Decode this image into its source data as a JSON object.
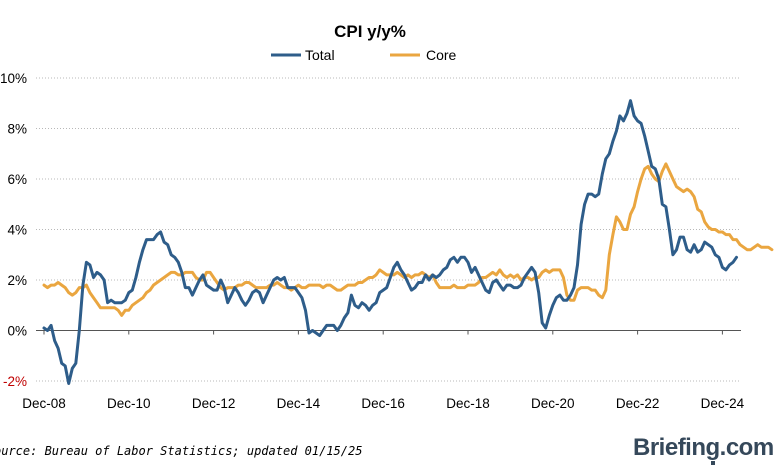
{
  "chart_data": {
    "type": "line",
    "title": "CPI y/y%",
    "xlabel": "",
    "ylabel": "",
    "ylim": [
      -2,
      10
    ],
    "x_ticks": [
      "Dec-08",
      "Dec-10",
      "Dec-12",
      "Dec-14",
      "Dec-16",
      "Dec-18",
      "Dec-20",
      "Dec-22",
      "Dec-24"
    ],
    "y_ticks": [
      "-2%",
      "0%",
      "2%",
      "4%",
      "6%",
      "8%",
      "10%"
    ],
    "y_tick_values": [
      -2,
      0,
      2,
      4,
      6,
      8,
      10
    ],
    "grid": "horizontal dotted",
    "legend_position": "top-center",
    "x_start": "2008-12",
    "x_end": "2024-12",
    "series": [
      {
        "name": "Total",
        "color": "#2e5d8a",
        "values": [
          0.1,
          0.0,
          0.2,
          -0.4,
          -0.7,
          -1.3,
          -1.4,
          -2.1,
          -1.5,
          -1.3,
          0.0,
          1.8,
          2.7,
          2.6,
          2.1,
          2.3,
          2.2,
          2.0,
          1.1,
          1.2,
          1.1,
          1.1,
          1.1,
          1.2,
          1.5,
          1.6,
          2.1,
          2.7,
          3.2,
          3.6,
          3.6,
          3.6,
          3.8,
          3.9,
          3.5,
          3.4,
          3.0,
          2.9,
          2.7,
          2.3,
          1.7,
          1.7,
          1.4,
          1.7,
          2.0,
          2.2,
          1.8,
          1.7,
          1.6,
          1.6,
          2.0,
          1.7,
          1.1,
          1.4,
          1.7,
          1.5,
          1.2,
          1.0,
          1.2,
          1.5,
          1.6,
          1.5,
          1.1,
          1.4,
          1.7,
          2.0,
          2.1,
          2.0,
          2.1,
          1.7,
          1.7,
          1.7,
          1.5,
          1.3,
          0.8,
          -0.1,
          0.0,
          -0.1,
          -0.2,
          0.0,
          0.2,
          0.2,
          0.2,
          0.0,
          0.2,
          0.5,
          0.7,
          1.4,
          1.0,
          0.9,
          1.1,
          1.0,
          0.8,
          1.0,
          1.1,
          1.5,
          1.6,
          1.7,
          2.1,
          2.5,
          2.7,
          2.4,
          2.2,
          1.9,
          1.6,
          1.7,
          1.9,
          1.9,
          2.2,
          2.0,
          2.2,
          2.1,
          2.2,
          2.4,
          2.5,
          2.8,
          2.9,
          2.7,
          2.9,
          2.9,
          2.7,
          2.3,
          2.5,
          2.2,
          1.9,
          1.6,
          1.5,
          1.9,
          2.0,
          1.8,
          1.6,
          1.8,
          1.8,
          1.7,
          1.7,
          1.8,
          2.1,
          2.3,
          2.5,
          2.3,
          1.5,
          0.3,
          0.1,
          0.6,
          1.0,
          1.3,
          1.4,
          1.2,
          1.2,
          1.4,
          1.7,
          2.6,
          4.2,
          5.0,
          5.4,
          5.4,
          5.3,
          5.4,
          6.2,
          6.8,
          7.0,
          7.5,
          7.9,
          8.5,
          8.3,
          8.6,
          9.1,
          8.5,
          8.3,
          8.2,
          7.7,
          7.1,
          6.5,
          6.4,
          6.0,
          5.0,
          4.9,
          4.0,
          3.0,
          3.2,
          3.7,
          3.7,
          3.2,
          3.1,
          3.4,
          3.1,
          3.2,
          3.5,
          3.4,
          3.3,
          3.0,
          2.9,
          2.5,
          2.4,
          2.6,
          2.7,
          2.9
        ]
      },
      {
        "name": "Core",
        "color": "#eaa640",
        "values": [
          1.8,
          1.7,
          1.8,
          1.8,
          1.9,
          1.8,
          1.7,
          1.5,
          1.4,
          1.5,
          1.7,
          1.7,
          1.8,
          1.5,
          1.3,
          1.1,
          0.9,
          0.9,
          0.9,
          0.9,
          0.9,
          0.8,
          0.6,
          0.8,
          0.8,
          1.0,
          1.1,
          1.2,
          1.3,
          1.5,
          1.6,
          1.8,
          1.9,
          2.0,
          2.1,
          2.2,
          2.3,
          2.3,
          2.2,
          2.2,
          2.3,
          2.3,
          2.3,
          2.1,
          2.0,
          2.0,
          2.3,
          2.3,
          2.1,
          1.9,
          1.7,
          1.6,
          1.7,
          1.7,
          1.7,
          1.8,
          1.8,
          1.9,
          1.9,
          1.8,
          1.7,
          1.7,
          1.7,
          1.7,
          1.8,
          1.8,
          1.9,
          1.8,
          1.7,
          1.7,
          1.6,
          1.7,
          1.8,
          1.7,
          1.7,
          1.8,
          1.8,
          1.8,
          1.8,
          1.7,
          1.8,
          1.8,
          1.7,
          1.6,
          1.6,
          1.7,
          1.8,
          1.8,
          1.8,
          1.9,
          1.9,
          2.0,
          2.1,
          2.1,
          2.2,
          2.4,
          2.3,
          2.2,
          2.2,
          2.2,
          2.3,
          2.2,
          2.1,
          2.2,
          2.1,
          2.2,
          2.2,
          2.3,
          2.2,
          2.1,
          2.2,
          1.9,
          1.7,
          1.7,
          1.7,
          1.7,
          1.8,
          1.7,
          1.7,
          1.7,
          1.8,
          1.8,
          1.8,
          1.9,
          2.1,
          2.1,
          2.2,
          2.3,
          2.2,
          2.4,
          2.2,
          2.1,
          2.2,
          2.1,
          2.2,
          2.0,
          2.1,
          2.1,
          2.0,
          2.1,
          2.1,
          2.3,
          2.4,
          2.3,
          2.4,
          2.4,
          2.4,
          2.1,
          1.4,
          1.2,
          1.2,
          1.6,
          1.7,
          1.7,
          1.7,
          1.6,
          1.6,
          1.4,
          1.3,
          1.6,
          3.0,
          3.8,
          4.5,
          4.3,
          4.0,
          4.0,
          4.6,
          4.9,
          5.5,
          6.0,
          6.4,
          6.5,
          6.2,
          6.0,
          5.9,
          6.3,
          6.6,
          6.3,
          6.0,
          5.7,
          5.6,
          5.5,
          5.6,
          5.5,
          5.3,
          4.8,
          4.7,
          4.3,
          4.1,
          4.0,
          4.0,
          3.9,
          3.9,
          3.8,
          3.8,
          3.6,
          3.6,
          3.4,
          3.3,
          3.2,
          3.2,
          3.3,
          3.4,
          3.3,
          3.3,
          3.3,
          3.2
        ]
      }
    ]
  },
  "footer": {
    "source": "ource: Bureau of Labor Statistics; updated 01/15/25",
    "brand": "Briefing.com"
  }
}
